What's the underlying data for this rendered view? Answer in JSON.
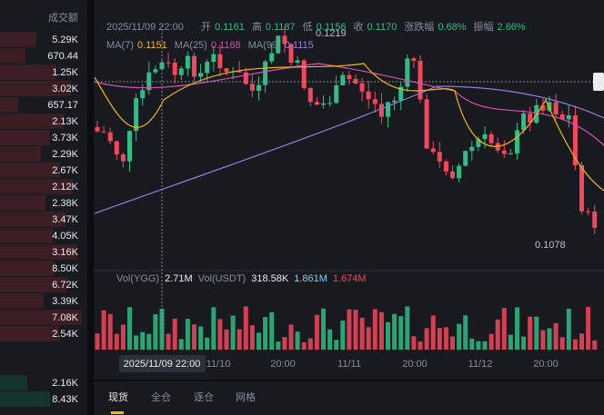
{
  "order_book": {
    "header": "成交额",
    "asks": [
      "5.29K",
      "670.44",
      "1.25K",
      "3.02K",
      "657.17",
      "2.13K",
      "3.73K",
      "2.29K",
      "2.67K",
      "2.12K",
      "2.38K",
      "3.47K",
      "4.05K",
      "3.16K",
      "8.50K",
      "6.72K",
      "3.39K",
      "7.08K",
      "2.54K"
    ],
    "bids": [
      "2.16K",
      "8.43K"
    ]
  },
  "chart": {
    "time": "2025/11/09 22:00",
    "ohlc": [
      {
        "label": "开",
        "value": "0.1161"
      },
      {
        "label": "高",
        "value": "0.1187"
      },
      {
        "label": "低",
        "value": "0.1156"
      },
      {
        "label": "收",
        "value": "0.1170"
      },
      {
        "label": "涨跌幅",
        "value": "0.68%"
      },
      {
        "label": "振幅",
        "value": "2.66%"
      }
    ],
    "ma": [
      {
        "label": "MA(7)",
        "value": "0.1151",
        "color": "#f0b90b"
      },
      {
        "label": "MA(25)",
        "value": "0.1168",
        "color": "#d64fb4"
      },
      {
        "label": "MA(99)",
        "value": "0.1115",
        "color": "#8e7fe0"
      }
    ],
    "high_label": "0.1219",
    "low_label": "0.1078",
    "volume": {
      "label1": "Vol(YGG)",
      "value1": "2.71M",
      "label2": "Vol(USDT)",
      "value2": "318.58K",
      "value3": "1.861M",
      "value4": "1.674M"
    },
    "x_labels": [
      "11/10",
      "20:00",
      "11/11",
      "20:00",
      "11/12",
      "20:00"
    ],
    "crosshair_label": "2025/11/09 22:00"
  },
  "tabs": [
    "现货",
    "全仓",
    "逐仓",
    "网格"
  ]
}
